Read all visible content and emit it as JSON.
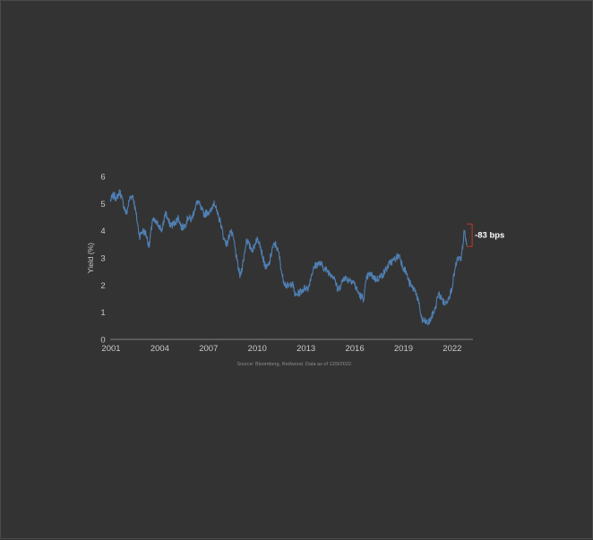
{
  "chart_data": {
    "type": "line",
    "title": "",
    "xlabel": "",
    "ylabel": "Yield (%)",
    "xlim": [
      2001,
      2023.2
    ],
    "ylim": [
      0,
      6
    ],
    "x_ticks": [
      "2001",
      "2004",
      "2007",
      "2010",
      "2013",
      "2016",
      "2019",
      "2022"
    ],
    "y_ticks": [
      "0",
      "1",
      "2",
      "3",
      "4",
      "5",
      "6"
    ],
    "grid": false,
    "legend": "none",
    "line_color": "#4f7fb3",
    "annotation": {
      "text": "-83 bps",
      "from": 4.25,
      "to": 3.42,
      "color": "#c0392b"
    },
    "source": "Source: Bloomberg, Redwood. Data as of 12/9/2022.",
    "series": [
      {
        "x": [
          2001.0,
          2001.2,
          2001.4,
          2001.6,
          2001.8,
          2002.0,
          2002.2,
          2002.4,
          2002.6,
          2002.8,
          2003.0,
          2003.2,
          2003.4,
          2003.6,
          2003.8,
          2004.0,
          2004.2,
          2004.4,
          2004.6,
          2004.8,
          2005.0,
          2005.2,
          2005.4,
          2005.6,
          2005.8,
          2006.0,
          2006.2,
          2006.4,
          2006.6,
          2006.8,
          2007.0,
          2007.2,
          2007.4,
          2007.6,
          2007.8,
          2008.0,
          2008.2,
          2008.4,
          2008.6,
          2008.8,
          2009.0,
          2009.2,
          2009.4,
          2009.6,
          2009.8,
          2010.0,
          2010.2,
          2010.4,
          2010.6,
          2010.8,
          2011.0,
          2011.2,
          2011.4,
          2011.6,
          2011.8,
          2012.0,
          2012.2,
          2012.4,
          2012.6,
          2012.8,
          2013.0,
          2013.2,
          2013.4,
          2013.6,
          2013.8,
          2014.0,
          2014.2,
          2014.4,
          2014.6,
          2014.8,
          2015.0,
          2015.2,
          2015.4,
          2015.6,
          2015.8,
          2016.0,
          2016.2,
          2016.4,
          2016.6,
          2016.8,
          2017.0,
          2017.2,
          2017.4,
          2017.6,
          2017.8,
          2018.0,
          2018.2,
          2018.4,
          2018.6,
          2018.8,
          2019.0,
          2019.2,
          2019.4,
          2019.6,
          2019.8,
          2020.0,
          2020.2,
          2020.4,
          2020.6,
          2020.8,
          2021.0,
          2021.2,
          2021.4,
          2021.6,
          2021.8,
          2022.0,
          2022.2,
          2022.4,
          2022.6,
          2022.8,
          2022.95
        ],
        "values": [
          5.1,
          5.3,
          5.2,
          5.45,
          5.0,
          4.6,
          5.2,
          5.3,
          4.6,
          3.8,
          4.0,
          3.9,
          3.4,
          4.4,
          4.3,
          4.2,
          4.0,
          4.7,
          4.3,
          4.2,
          4.3,
          4.5,
          4.1,
          4.2,
          4.5,
          4.4,
          4.8,
          5.1,
          4.8,
          4.6,
          4.7,
          4.7,
          5.1,
          4.6,
          4.3,
          3.7,
          3.5,
          4.0,
          3.7,
          2.9,
          2.3,
          2.9,
          3.7,
          3.4,
          3.3,
          3.7,
          3.6,
          3.0,
          2.6,
          2.8,
          3.4,
          3.5,
          3.1,
          2.3,
          2.0,
          1.95,
          2.1,
          1.6,
          1.7,
          1.8,
          1.9,
          1.9,
          2.4,
          2.7,
          2.8,
          2.75,
          2.6,
          2.5,
          2.4,
          2.3,
          1.8,
          2.0,
          2.3,
          2.2,
          2.2,
          2.1,
          1.8,
          1.6,
          1.5,
          2.3,
          2.4,
          2.3,
          2.2,
          2.3,
          2.4,
          2.6,
          2.8,
          2.9,
          3.0,
          3.1,
          2.7,
          2.5,
          2.1,
          1.9,
          1.8,
          1.3,
          0.7,
          0.65,
          0.6,
          0.85,
          1.1,
          1.7,
          1.5,
          1.3,
          1.5,
          1.8,
          2.5,
          3.0,
          2.9,
          4.0,
          3.45
        ]
      }
    ]
  }
}
